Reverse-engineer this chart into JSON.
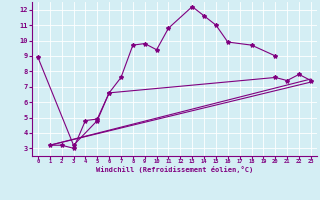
{
  "xlabel": "Windchill (Refroidissement éolien,°C)",
  "background_color": "#d4eef4",
  "line_color": "#800080",
  "grid_color": "#ffffff",
  "xlim": [
    -0.5,
    23.5
  ],
  "ylim": [
    2.5,
    12.5
  ],
  "yticks": [
    3,
    4,
    5,
    6,
    7,
    8,
    9,
    10,
    11,
    12
  ],
  "xticks": [
    0,
    1,
    2,
    3,
    4,
    5,
    6,
    7,
    8,
    9,
    10,
    11,
    12,
    13,
    14,
    15,
    16,
    17,
    18,
    19,
    20,
    21,
    22,
    23
  ],
  "s1x": [
    0,
    3,
    5,
    6,
    7,
    8,
    9,
    10,
    11,
    13,
    14,
    15,
    16,
    18,
    20
  ],
  "s1y": [
    8.9,
    3.2,
    4.8,
    6.6,
    7.6,
    9.7,
    9.8,
    9.4,
    10.8,
    12.2,
    11.6,
    11.0,
    9.9,
    9.7,
    9.0
  ],
  "s2x": [
    1,
    2,
    3,
    4,
    5,
    6,
    20,
    21,
    22,
    23
  ],
  "s2y": [
    3.2,
    3.2,
    3.0,
    4.8,
    4.9,
    6.6,
    7.6,
    7.4,
    7.8,
    7.4
  ],
  "s3x": [
    1,
    23
  ],
  "s3y": [
    3.2,
    7.3
  ],
  "s4x": [
    1,
    23
  ],
  "s4y": [
    3.2,
    7.5
  ]
}
